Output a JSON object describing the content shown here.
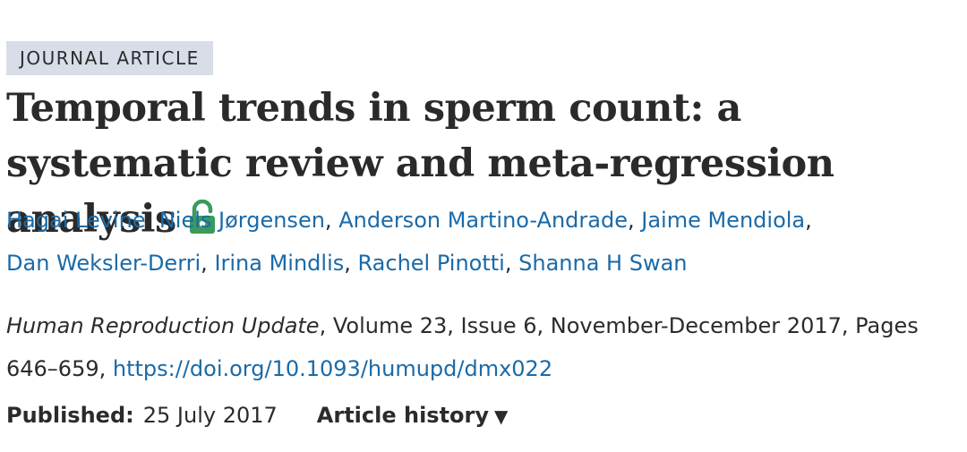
{
  "badge": "JOURNAL ARTICLE",
  "title": "Temporal trends in sperm count: a systematic review and meta-regression analysis",
  "open_access_color": "#3a9b5c",
  "open_access_icon": "unlocked-padlock-icon",
  "authors": [
    "Hagai Levine",
    "Niels Jørgensen",
    "Anderson Martino-Andrade",
    "Jaime Mendiola",
    "Dan Weksler-Derri",
    "Irina Mindlis",
    "Rachel Pinotti",
    "Shanna H Swan"
  ],
  "citation": {
    "journal": "Human Reproduction Update",
    "details": ", Volume 23, Issue 6, November-December 2017, Pages 646–659, ",
    "doi": "https://doi.org/10.1093/humupd/dmx022"
  },
  "published": {
    "label": "Published:",
    "date": "25 July 2017",
    "history_label": "Article history",
    "history_arrow": "▼"
  },
  "link_color": "#1a6aa8"
}
